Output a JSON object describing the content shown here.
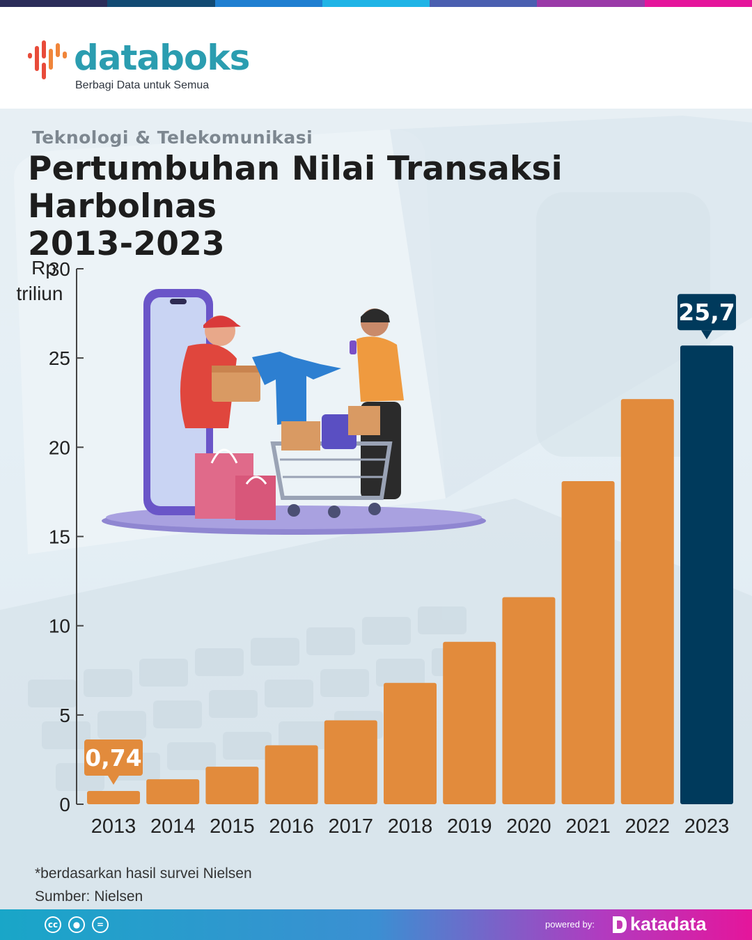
{
  "brand": {
    "name": "databoks",
    "tagline": "Berbagi Data untuk Semua",
    "colors": {
      "teal": "#2b9db0",
      "orange": "#e28b3c",
      "navy": "#003a5c"
    }
  },
  "header": {
    "category": "Teknologi & Telekomunikasi",
    "title_line1": "Pertumbuhan Nilai Transaksi Harbolnas",
    "title_line2": "2013-2023"
  },
  "chart_data": {
    "type": "bar",
    "title": "Pertumbuhan Nilai Transaksi Harbolnas 2013-2023",
    "ylabel_line1": "Rp",
    "ylabel_line2": "triliun",
    "ylim": [
      0,
      30
    ],
    "yticks": [
      0,
      5,
      10,
      15,
      20,
      25,
      30
    ],
    "categories": [
      "2013",
      "2014",
      "2015",
      "2016",
      "2017",
      "2018",
      "2019",
      "2020",
      "2021",
      "2022",
      "2023"
    ],
    "values": [
      0.74,
      1.4,
      2.1,
      3.3,
      4.7,
      6.8,
      9.1,
      11.6,
      18.1,
      22.7,
      25.7
    ],
    "highlight_index": 10,
    "annotations": [
      {
        "index": 0,
        "label": "0,74"
      },
      {
        "index": 10,
        "label": "25,7"
      }
    ]
  },
  "footer": {
    "note": "*berdasarkan hasil survei Nielsen",
    "source": "Sumber: Nielsen",
    "cc_icons": [
      "cc-icon",
      "by-icon",
      "nd-icon"
    ],
    "powered_by": "powered by:",
    "company": "katadata"
  }
}
